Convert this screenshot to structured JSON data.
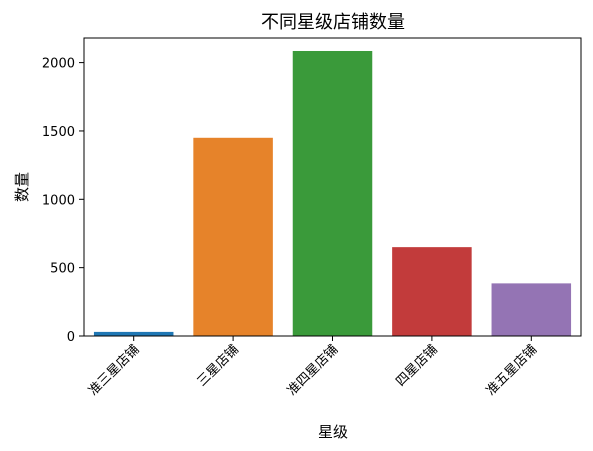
{
  "chart_data": {
    "type": "bar",
    "title": "不同星级店铺数量",
    "xlabel": "星级",
    "ylabel": "数量",
    "categories": [
      "准三星店铺",
      "三星店铺",
      "准四星店铺",
      "四星店铺",
      "准五星店铺"
    ],
    "values": [
      30,
      1450,
      2085,
      650,
      385
    ],
    "colors": [
      "#1f77b4",
      "#e6832a",
      "#3a9a3a",
      "#c23b3b",
      "#9474b4"
    ],
    "ylim": [
      0,
      2180
    ],
    "yticks": [
      0,
      500,
      1000,
      1500,
      2000
    ],
    "grid": false,
    "legend": false
  }
}
